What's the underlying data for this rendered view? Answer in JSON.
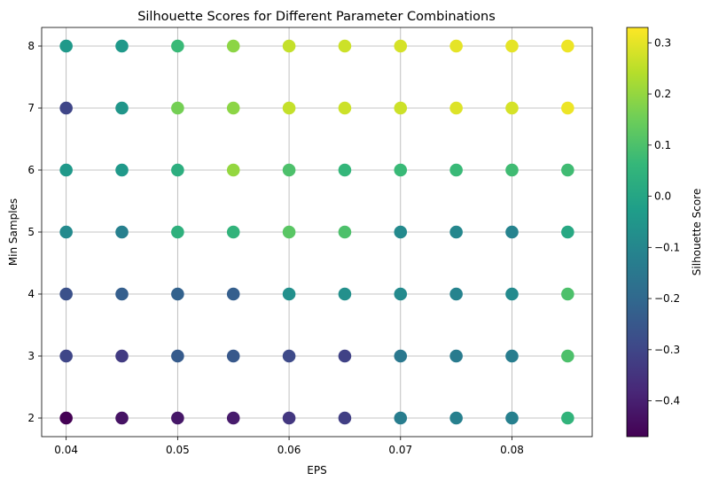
{
  "chart_data": {
    "type": "scatter",
    "title": "Silhouette Scores for Different Parameter Combinations",
    "xlabel": "EPS",
    "ylabel": "Min Samples",
    "xlim": [
      0.0378,
      0.0872
    ],
    "ylim": [
      1.7,
      8.3
    ],
    "x_ticks": [
      0.04,
      0.05,
      0.06,
      0.07,
      0.08
    ],
    "x_tick_labels": [
      "0.04",
      "0.05",
      "0.06",
      "0.07",
      "0.08"
    ],
    "y_ticks": [
      2,
      3,
      4,
      5,
      6,
      7,
      8
    ],
    "y_tick_labels": [
      "2",
      "3",
      "4",
      "5",
      "6",
      "7",
      "8"
    ],
    "grid": true,
    "colormap": "viridis",
    "colorbar": {
      "label": "Silhouette Score",
      "range": [
        -0.47,
        0.33
      ],
      "ticks": [
        -0.4,
        -0.3,
        -0.2,
        -0.1,
        0.0,
        0.1,
        0.2,
        0.3
      ],
      "tick_labels": [
        "−0.4",
        "−0.3",
        "−0.2",
        "−0.1",
        "0.0",
        "0.1",
        "0.2",
        "0.3"
      ]
    },
    "eps_values": [
      0.04,
      0.045,
      0.05,
      0.055,
      0.06,
      0.065,
      0.07,
      0.075,
      0.08,
      0.085
    ],
    "min_samples_values": [
      2,
      3,
      4,
      5,
      6,
      7,
      8
    ],
    "scores": [
      [
        -0.47,
        -0.43,
        -0.42,
        -0.41,
        -0.34,
        -0.32,
        -0.13,
        -0.12,
        -0.12,
        0.05
      ],
      [
        -0.3,
        -0.33,
        -0.24,
        -0.25,
        -0.29,
        -0.31,
        -0.15,
        -0.14,
        -0.13,
        0.1
      ],
      [
        -0.27,
        -0.23,
        -0.22,
        -0.23,
        -0.07,
        -0.07,
        -0.09,
        -0.11,
        -0.09,
        0.1
      ],
      [
        -0.09,
        -0.12,
        0.04,
        0.05,
        0.12,
        0.1,
        -0.09,
        -0.1,
        -0.11,
        0.01
      ],
      [
        -0.04,
        -0.04,
        0.03,
        0.2,
        0.1,
        0.06,
        0.07,
        0.07,
        0.08,
        0.08
      ],
      [
        -0.3,
        -0.05,
        0.16,
        0.19,
        0.26,
        0.27,
        0.27,
        0.29,
        0.28,
        0.31
      ],
      [
        -0.04,
        -0.04,
        0.07,
        0.19,
        0.26,
        0.27,
        0.28,
        0.3,
        0.3,
        0.31
      ]
    ]
  }
}
